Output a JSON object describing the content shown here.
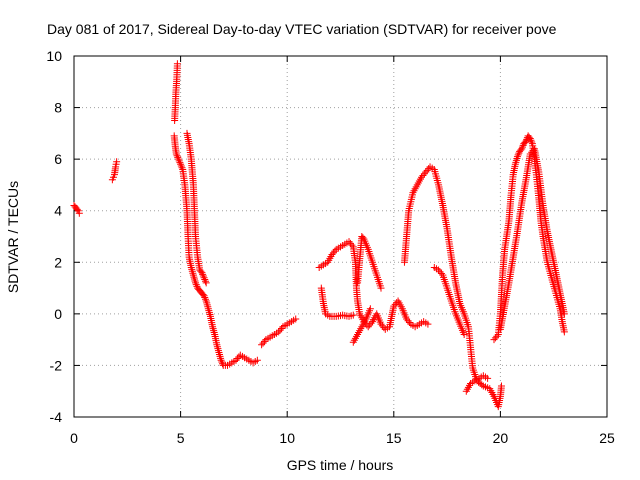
{
  "chart_data": {
    "type": "scatter",
    "title": "Day 081 of 2017, Sidereal Day-to-day VTEC variation (SDTVAR) for receiver pove",
    "xlabel": "GPS time / hours",
    "ylabel": "SDTVAR / TECUs",
    "xlim": [
      0,
      25
    ],
    "ylim": [
      -4,
      10
    ],
    "xticks": [
      0,
      5,
      10,
      15,
      20,
      25
    ],
    "yticks": [
      -4,
      -2,
      0,
      2,
      4,
      6,
      8,
      10
    ],
    "grid": true,
    "marker": "+",
    "series": [
      {
        "name": "SDTVAR",
        "color": "#ff0000",
        "segments": [
          [
            [
              0.0,
              4.2
            ],
            [
              0.1,
              4.1
            ],
            [
              0.2,
              4.0
            ],
            [
              0.25,
              3.9
            ]
          ],
          [
            [
              1.8,
              5.2
            ],
            [
              1.85,
              5.3
            ],
            [
              1.9,
              5.4
            ],
            [
              1.95,
              5.7
            ],
            [
              2.0,
              5.9
            ]
          ],
          [
            [
              4.7,
              6.9
            ],
            [
              4.75,
              6.5
            ],
            [
              4.8,
              6.2
            ],
            [
              4.9,
              6.0
            ],
            [
              5.0,
              5.8
            ],
            [
              5.1,
              5.6
            ],
            [
              5.2,
              5.0
            ],
            [
              5.3,
              4.0
            ],
            [
              5.35,
              3.0
            ],
            [
              5.4,
              2.2
            ],
            [
              5.5,
              1.8
            ],
            [
              5.6,
              1.5
            ],
            [
              5.7,
              1.2
            ],
            [
              5.8,
              1.0
            ],
            [
              5.9,
              0.9
            ],
            [
              6.0,
              0.8
            ],
            [
              6.1,
              0.7
            ],
            [
              6.2,
              0.5
            ],
            [
              6.3,
              0.2
            ],
            [
              6.4,
              -0.1
            ],
            [
              6.5,
              -0.5
            ],
            [
              6.6,
              -0.8
            ],
            [
              6.7,
              -1.2
            ],
            [
              6.8,
              -1.5
            ],
            [
              6.9,
              -1.8
            ],
            [
              7.0,
              -2.0
            ],
            [
              7.2,
              -2.0
            ],
            [
              7.4,
              -1.9
            ],
            [
              7.6,
              -1.8
            ],
            [
              7.8,
              -1.6
            ],
            [
              8.0,
              -1.7
            ],
            [
              8.2,
              -1.8
            ],
            [
              8.4,
              -1.9
            ],
            [
              8.6,
              -1.8
            ]
          ],
          [
            [
              4.72,
              7.5
            ],
            [
              4.75,
              8.0
            ],
            [
              4.78,
              8.6
            ],
            [
              4.82,
              9.1
            ],
            [
              4.85,
              9.7
            ]
          ],
          [
            [
              5.3,
              7.0
            ],
            [
              5.4,
              6.6
            ],
            [
              5.5,
              6.0
            ],
            [
              5.6,
              5.0
            ],
            [
              5.65,
              4.0
            ],
            [
              5.7,
              3.0
            ],
            [
              5.8,
              2.2
            ],
            [
              5.9,
              1.7
            ],
            [
              6.0,
              1.6
            ],
            [
              6.1,
              1.4
            ],
            [
              6.2,
              1.2
            ]
          ],
          [
            [
              8.8,
              -1.2
            ],
            [
              9.0,
              -1.0
            ],
            [
              9.2,
              -0.9
            ],
            [
              9.4,
              -0.8
            ],
            [
              9.6,
              -0.7
            ],
            [
              9.8,
              -0.5
            ],
            [
              10.0,
              -0.4
            ],
            [
              10.2,
              -0.3
            ],
            [
              10.4,
              -0.2
            ]
          ],
          [
            [
              11.5,
              1.8
            ],
            [
              11.7,
              1.9
            ],
            [
              11.9,
              2.0
            ],
            [
              12.1,
              2.3
            ],
            [
              12.3,
              2.5
            ],
            [
              12.5,
              2.6
            ],
            [
              12.7,
              2.7
            ],
            [
              12.9,
              2.8
            ],
            [
              13.1,
              2.6
            ],
            [
              13.2,
              2.0
            ],
            [
              13.25,
              1.0
            ],
            [
              13.3,
              0.5
            ],
            [
              13.4,
              0.0
            ],
            [
              13.6,
              -0.3
            ],
            [
              13.8,
              -0.5
            ],
            [
              14.0,
              -0.3
            ],
            [
              14.2,
              0.0
            ],
            [
              14.4,
              -0.4
            ],
            [
              14.6,
              -0.6
            ],
            [
              14.8,
              -0.5
            ],
            [
              15.0,
              0.3
            ],
            [
              15.2,
              0.5
            ],
            [
              15.4,
              0.2
            ],
            [
              15.6,
              -0.2
            ],
            [
              15.8,
              -0.4
            ],
            [
              16.0,
              -0.5
            ],
            [
              16.2,
              -0.4
            ],
            [
              16.4,
              -0.3
            ],
            [
              16.6,
              -0.4
            ]
          ],
          [
            [
              11.6,
              1.0
            ],
            [
              11.7,
              0.4
            ],
            [
              11.8,
              0.0
            ],
            [
              12.0,
              -0.1
            ],
            [
              12.3,
              -0.1
            ],
            [
              12.6,
              -0.05
            ],
            [
              12.9,
              -0.1
            ],
            [
              13.1,
              -0.05
            ]
          ],
          [
            [
              13.3,
              1.2
            ],
            [
              13.5,
              3.0
            ],
            [
              13.6,
              2.9
            ],
            [
              13.8,
              2.5
            ],
            [
              14.0,
              2.0
            ],
            [
              14.2,
              1.5
            ],
            [
              14.4,
              1.0
            ]
          ],
          [
            [
              13.1,
              -1.1
            ],
            [
              13.3,
              -0.8
            ],
            [
              13.5,
              -0.5
            ],
            [
              13.7,
              -0.2
            ],
            [
              13.9,
              0.2
            ]
          ],
          [
            [
              15.5,
              2.0
            ],
            [
              15.6,
              3.0
            ],
            [
              15.7,
              4.0
            ],
            [
              15.9,
              4.7
            ],
            [
              16.1,
              5.0
            ],
            [
              16.3,
              5.3
            ],
            [
              16.5,
              5.5
            ],
            [
              16.7,
              5.7
            ],
            [
              16.9,
              5.6
            ],
            [
              17.1,
              5.0
            ],
            [
              17.3,
              4.2
            ],
            [
              17.5,
              3.3
            ],
            [
              17.7,
              2.2
            ],
            [
              17.9,
              1.2
            ],
            [
              18.1,
              0.4
            ],
            [
              18.3,
              0.0
            ],
            [
              18.5,
              -0.5
            ],
            [
              18.6,
              -1.3
            ],
            [
              18.7,
              -2.1
            ],
            [
              18.9,
              -2.6
            ],
            [
              19.2,
              -2.8
            ],
            [
              19.5,
              -2.9
            ],
            [
              19.7,
              -3.2
            ],
            [
              19.9,
              -3.6
            ],
            [
              20.0,
              -3.2
            ],
            [
              20.05,
              -2.8
            ]
          ],
          [
            [
              16.9,
              1.8
            ],
            [
              17.1,
              1.7
            ],
            [
              17.3,
              1.5
            ],
            [
              17.5,
              1.0
            ],
            [
              17.7,
              0.5
            ],
            [
              17.9,
              0.0
            ],
            [
              18.1,
              -0.4
            ],
            [
              18.3,
              -0.8
            ]
          ],
          [
            [
              18.4,
              -3.0
            ],
            [
              18.6,
              -2.7
            ],
            [
              18.8,
              -2.6
            ],
            [
              19.0,
              -2.5
            ],
            [
              19.2,
              -2.4
            ],
            [
              19.4,
              -2.5
            ]
          ],
          [
            [
              19.7,
              -1.0
            ],
            [
              19.9,
              -0.8
            ],
            [
              20.0,
              0.0
            ],
            [
              20.1,
              1.5
            ],
            [
              20.2,
              2.5
            ],
            [
              20.4,
              3.6
            ],
            [
              20.5,
              4.6
            ],
            [
              20.6,
              5.4
            ],
            [
              20.7,
              5.8
            ],
            [
              20.8,
              6.1
            ],
            [
              20.9,
              6.3
            ],
            [
              21.0,
              6.4
            ],
            [
              21.1,
              6.6
            ],
            [
              21.2,
              6.7
            ],
            [
              21.3,
              6.9
            ],
            [
              21.4,
              6.8
            ],
            [
              21.5,
              6.6
            ],
            [
              21.6,
              6.0
            ],
            [
              21.7,
              5.3
            ],
            [
              21.8,
              4.5
            ],
            [
              21.9,
              3.6
            ],
            [
              22.0,
              3.0
            ],
            [
              22.1,
              2.5
            ],
            [
              22.2,
              2.0
            ],
            [
              22.4,
              1.4
            ],
            [
              22.6,
              0.8
            ],
            [
              22.8,
              0.2
            ],
            [
              22.9,
              -0.3
            ],
            [
              23.0,
              -0.7
            ]
          ],
          [
            [
              20.0,
              -0.6
            ],
            [
              20.2,
              0.3
            ],
            [
              20.4,
              1.2
            ],
            [
              20.6,
              2.2
            ],
            [
              20.8,
              3.2
            ],
            [
              21.0,
              4.3
            ],
            [
              21.2,
              5.2
            ],
            [
              21.4,
              6.2
            ],
            [
              21.6,
              6.4
            ],
            [
              21.8,
              5.5
            ],
            [
              22.0,
              4.2
            ],
            [
              22.2,
              3.2
            ],
            [
              22.4,
              2.4
            ],
            [
              22.6,
              1.6
            ],
            [
              22.8,
              0.8
            ],
            [
              23.0,
              0.0
            ]
          ]
        ]
      }
    ]
  }
}
